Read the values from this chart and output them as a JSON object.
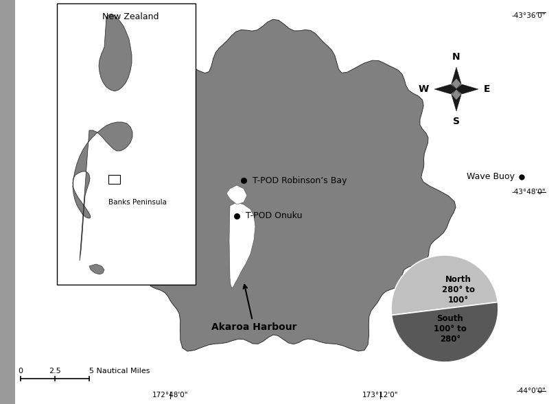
{
  "background_color": "#ffffff",
  "land_color": "#808080",
  "land_edge_color": "#1a1a1a",
  "water_color": "#ffffff",
  "pie_north_color": "#c0c0c0",
  "pie_south_color": "#585858",
  "gray_strip_color": "#999999",
  "axis_labels": {
    "top": "-43°36'0\"",
    "mid": "-43°48'0\"",
    "bot": "-44°0'0\"",
    "lon_left": "172°48'0\"",
    "lon_right": "173°12'0\""
  },
  "inset_label_nz": "New Zealand",
  "inset_label_bp": "Banks Peninsula",
  "wave_buoy_label": "Wave Buoy",
  "tpod_robinson_label": "T-POD Robinson’s Bay",
  "tpod_onuku_label": "T-POD Onuku",
  "akaroa_label": "Akaroa Harbour",
  "pie_north_label": "North\n280° to\n100°",
  "pie_south_label": "South\n100° to\n280°"
}
